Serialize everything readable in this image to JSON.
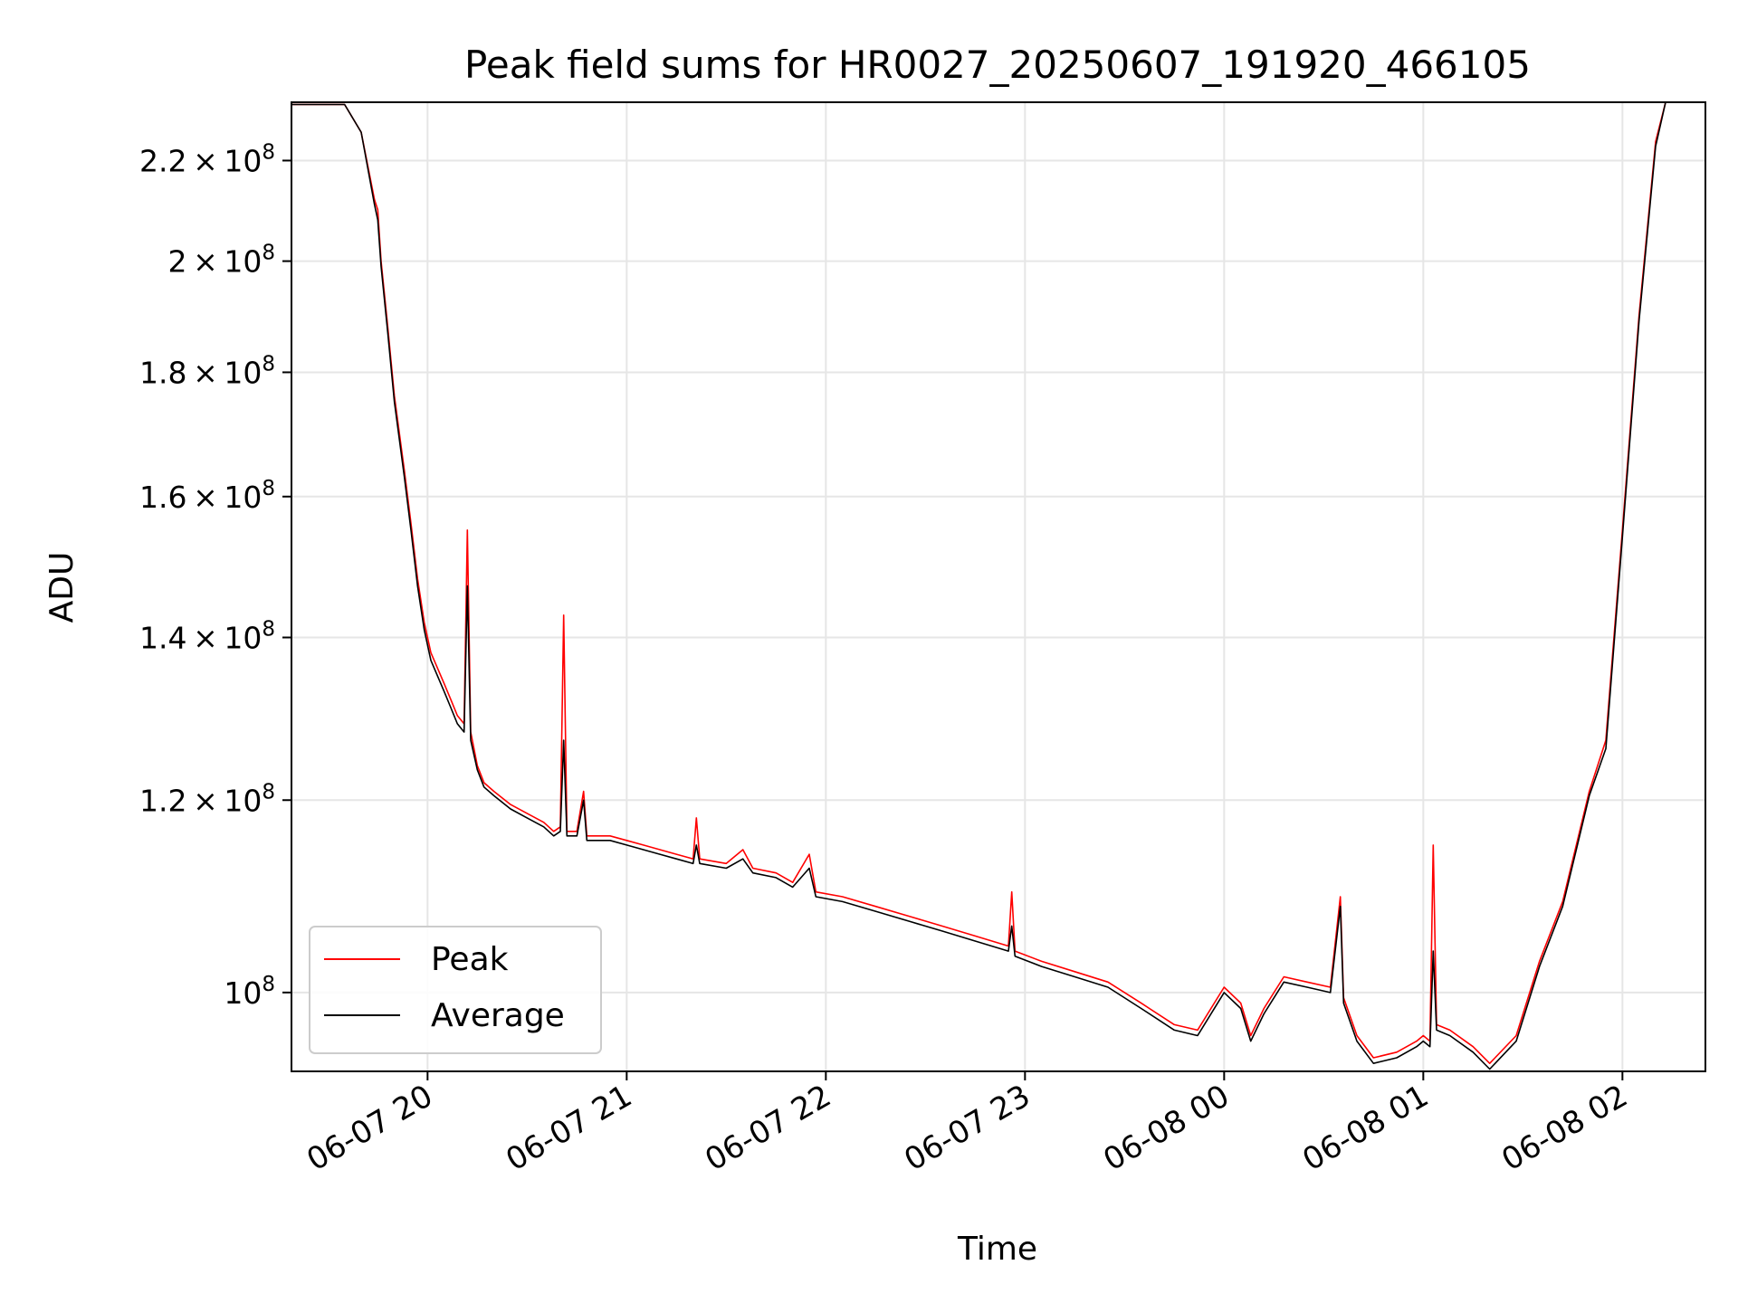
{
  "chart_data": {
    "type": "line",
    "title": "Peak field sums for HR0027_20250607_191920_466105",
    "xlabel": "Time",
    "ylabel": "ADU",
    "x_unit": "date-hour",
    "xlim": [
      "06-07 19:19",
      "06-08 02:25"
    ],
    "ylim": [
      92800000,
      232500000
    ],
    "yscale": "log",
    "grid": true,
    "legend_position": "lower-left",
    "x_ticks": [
      {
        "label": "06-07 20",
        "value": "06-07 20:00"
      },
      {
        "label": "06-07 21",
        "value": "06-07 21:00"
      },
      {
        "label": "06-07 22",
        "value": "06-07 22:00"
      },
      {
        "label": "06-07 23",
        "value": "06-07 23:00"
      },
      {
        "label": "06-08 00",
        "value": "06-08 00:00"
      },
      {
        "label": "06-08 01",
        "value": "06-08 01:00"
      },
      {
        "label": "06-08 02",
        "value": "06-08 02:00"
      }
    ],
    "y_ticks": [
      {
        "mantissa": "2.2",
        "value": 220000000
      },
      {
        "mantissa": "2",
        "value": 200000000
      },
      {
        "mantissa": "1.8",
        "value": 180000000
      },
      {
        "mantissa": "1.6",
        "value": 160000000
      },
      {
        "mantissa": "1.4",
        "value": 140000000
      },
      {
        "mantissa": "1.2",
        "value": 120000000
      },
      {
        "mantissa": "",
        "value": 100000000
      }
    ],
    "y_tick_base": "10",
    "y_tick_exponent": "8",
    "times_sign": "×",
    "series": [
      {
        "name": "Peak",
        "color": "#ff0000",
        "points": [
          [
            "06-07 19:19",
            232000000
          ],
          [
            "06-07 19:35",
            232000000
          ],
          [
            "06-07 19:40",
            226000000
          ],
          [
            "06-07 19:44",
            212000000
          ],
          [
            "06-07 19:45",
            210000000
          ],
          [
            "06-07 19:46",
            200000000
          ],
          [
            "06-07 19:48",
            188000000
          ],
          [
            "06-07 19:50",
            176000000
          ],
          [
            "06-07 19:53",
            164000000
          ],
          [
            "06-07 19:55",
            156000000
          ],
          [
            "06-07 19:57",
            148000000
          ],
          [
            "06-07 19:59",
            142000000
          ],
          [
            "06-07 20:01",
            138000000
          ],
          [
            "06-07 20:03",
            136000000
          ],
          [
            "06-07 20:05",
            134000000
          ],
          [
            "06-07 20:07",
            132000000
          ],
          [
            "06-07 20:09",
            130000000
          ],
          [
            "06-07 20:11",
            129000000
          ],
          [
            "06-07 20:12",
            155000000
          ],
          [
            "06-07 20:13",
            128000000
          ],
          [
            "06-07 20:15",
            124000000
          ],
          [
            "06-07 20:17",
            122000000
          ],
          [
            "06-07 20:20",
            121000000
          ],
          [
            "06-07 20:25",
            119500000
          ],
          [
            "06-07 20:30",
            118500000
          ],
          [
            "06-07 20:35",
            117500000
          ],
          [
            "06-07 20:38",
            116500000
          ],
          [
            "06-07 20:40",
            117000000
          ],
          [
            "06-07 20:41",
            143000000
          ],
          [
            "06-07 20:42",
            116500000
          ],
          [
            "06-07 20:45",
            116500000
          ],
          [
            "06-07 20:47",
            121000000
          ],
          [
            "06-07 20:48",
            116000000
          ],
          [
            "06-07 20:55",
            116000000
          ],
          [
            "06-07 21:00",
            115500000
          ],
          [
            "06-07 21:05",
            115000000
          ],
          [
            "06-07 21:10",
            114500000
          ],
          [
            "06-07 21:15",
            114000000
          ],
          [
            "06-07 21:20",
            113500000
          ],
          [
            "06-07 21:21",
            118000000
          ],
          [
            "06-07 21:22",
            113500000
          ],
          [
            "06-07 21:30",
            113000000
          ],
          [
            "06-07 21:35",
            114500000
          ],
          [
            "06-07 21:38",
            112500000
          ],
          [
            "06-07 21:45",
            112000000
          ],
          [
            "06-07 21:50",
            111000000
          ],
          [
            "06-07 21:55",
            114000000
          ],
          [
            "06-07 21:57",
            110000000
          ],
          [
            "06-07 22:05",
            109500000
          ],
          [
            "06-07 22:15",
            108500000
          ],
          [
            "06-07 22:25",
            107500000
          ],
          [
            "06-07 22:35",
            106500000
          ],
          [
            "06-07 22:45",
            105500000
          ],
          [
            "06-07 22:55",
            104500000
          ],
          [
            "06-07 22:56",
            110000000
          ],
          [
            "06-07 22:57",
            104000000
          ],
          [
            "06-07 23:05",
            103000000
          ],
          [
            "06-07 23:15",
            102000000
          ],
          [
            "06-07 23:25",
            101000000
          ],
          [
            "06-07 23:35",
            99000000
          ],
          [
            "06-07 23:45",
            97000000
          ],
          [
            "06-07 23:52",
            96500000
          ],
          [
            "06-08 00:00",
            100500000
          ],
          [
            "06-08 00:05",
            99000000
          ],
          [
            "06-08 00:08",
            96000000
          ],
          [
            "06-08 00:12",
            98500000
          ],
          [
            "06-08 00:18",
            101500000
          ],
          [
            "06-08 00:25",
            101000000
          ],
          [
            "06-08 00:32",
            100500000
          ],
          [
            "06-08 00:35",
            109500000
          ],
          [
            "06-08 00:36",
            99500000
          ],
          [
            "06-08 00:40",
            96000000
          ],
          [
            "06-08 00:45",
            94000000
          ],
          [
            "06-08 00:52",
            94500000
          ],
          [
            "06-08 00:58",
            95500000
          ],
          [
            "06-08 01:00",
            96000000
          ],
          [
            "06-08 01:02",
            95500000
          ],
          [
            "06-08 01:03",
            115000000
          ],
          [
            "06-08 01:04",
            97000000
          ],
          [
            "06-08 01:08",
            96500000
          ],
          [
            "06-08 01:15",
            95000000
          ],
          [
            "06-08 01:20",
            93500000
          ],
          [
            "06-08 01:28",
            96000000
          ],
          [
            "06-08 01:35",
            103000000
          ],
          [
            "06-08 01:42",
            109000000
          ],
          [
            "06-08 01:50",
            121000000
          ],
          [
            "06-08 01:55",
            127000000
          ],
          [
            "06-08 02:00",
            155000000
          ],
          [
            "06-08 02:05",
            190000000
          ],
          [
            "06-08 02:10",
            224000000
          ],
          [
            "06-08 02:13",
            232500000
          ]
        ]
      },
      {
        "name": "Average",
        "color": "#000000",
        "points": [
          [
            "06-07 19:19",
            232000000
          ],
          [
            "06-07 19:35",
            232000000
          ],
          [
            "06-07 19:40",
            226000000
          ],
          [
            "06-07 19:44",
            211000000
          ],
          [
            "06-07 19:45",
            208000000
          ],
          [
            "06-07 19:46",
            199000000
          ],
          [
            "06-07 19:48",
            187000000
          ],
          [
            "06-07 19:50",
            175000000
          ],
          [
            "06-07 19:53",
            163000000
          ],
          [
            "06-07 19:55",
            155000000
          ],
          [
            "06-07 19:57",
            147000000
          ],
          [
            "06-07 19:59",
            141000000
          ],
          [
            "06-07 20:01",
            137000000
          ],
          [
            "06-07 20:03",
            135000000
          ],
          [
            "06-07 20:05",
            133000000
          ],
          [
            "06-07 20:07",
            131000000
          ],
          [
            "06-07 20:09",
            129000000
          ],
          [
            "06-07 20:11",
            128000000
          ],
          [
            "06-07 20:12",
            147000000
          ],
          [
            "06-07 20:13",
            127000000
          ],
          [
            "06-07 20:15",
            123500000
          ],
          [
            "06-07 20:17",
            121500000
          ],
          [
            "06-07 20:20",
            120500000
          ],
          [
            "06-07 20:25",
            119000000
          ],
          [
            "06-07 20:30",
            118000000
          ],
          [
            "06-07 20:35",
            117000000
          ],
          [
            "06-07 20:38",
            116000000
          ],
          [
            "06-07 20:40",
            116500000
          ],
          [
            "06-07 20:41",
            127000000
          ],
          [
            "06-07 20:42",
            116000000
          ],
          [
            "06-07 20:45",
            116000000
          ],
          [
            "06-07 20:47",
            120000000
          ],
          [
            "06-07 20:48",
            115500000
          ],
          [
            "06-07 20:55",
            115500000
          ],
          [
            "06-07 21:00",
            115000000
          ],
          [
            "06-07 21:05",
            114500000
          ],
          [
            "06-07 21:10",
            114000000
          ],
          [
            "06-07 21:15",
            113500000
          ],
          [
            "06-07 21:20",
            113000000
          ],
          [
            "06-07 21:21",
            115000000
          ],
          [
            "06-07 21:22",
            113000000
          ],
          [
            "06-07 21:30",
            112500000
          ],
          [
            "06-07 21:35",
            113500000
          ],
          [
            "06-07 21:38",
            112000000
          ],
          [
            "06-07 21:45",
            111500000
          ],
          [
            "06-07 21:50",
            110500000
          ],
          [
            "06-07 21:55",
            112500000
          ],
          [
            "06-07 21:57",
            109500000
          ],
          [
            "06-07 22:05",
            109000000
          ],
          [
            "06-07 22:15",
            108000000
          ],
          [
            "06-07 22:25",
            107000000
          ],
          [
            "06-07 22:35",
            106000000
          ],
          [
            "06-07 22:45",
            105000000
          ],
          [
            "06-07 22:55",
            104000000
          ],
          [
            "06-07 22:56",
            106500000
          ],
          [
            "06-07 22:57",
            103500000
          ],
          [
            "06-07 23:05",
            102500000
          ],
          [
            "06-07 23:15",
            101500000
          ],
          [
            "06-07 23:25",
            100500000
          ],
          [
            "06-07 23:35",
            98500000
          ],
          [
            "06-07 23:45",
            96500000
          ],
          [
            "06-07 23:52",
            96000000
          ],
          [
            "06-08 00:00",
            100000000
          ],
          [
            "06-08 00:05",
            98500000
          ],
          [
            "06-08 00:08",
            95500000
          ],
          [
            "06-08 00:12",
            98000000
          ],
          [
            "06-08 00:18",
            101000000
          ],
          [
            "06-08 00:25",
            100500000
          ],
          [
            "06-08 00:32",
            100000000
          ],
          [
            "06-08 00:35",
            108500000
          ],
          [
            "06-08 00:36",
            99000000
          ],
          [
            "06-08 00:40",
            95500000
          ],
          [
            "06-08 00:45",
            93500000
          ],
          [
            "06-08 00:52",
            94000000
          ],
          [
            "06-08 00:58",
            95000000
          ],
          [
            "06-08 01:00",
            95500000
          ],
          [
            "06-08 01:02",
            95000000
          ],
          [
            "06-08 01:03",
            104000000
          ],
          [
            "06-08 01:04",
            96500000
          ],
          [
            "06-08 01:08",
            96000000
          ],
          [
            "06-08 01:15",
            94500000
          ],
          [
            "06-08 01:20",
            93000000
          ],
          [
            "06-08 01:28",
            95500000
          ],
          [
            "06-08 01:35",
            102500000
          ],
          [
            "06-08 01:42",
            108500000
          ],
          [
            "06-08 01:50",
            120500000
          ],
          [
            "06-08 01:55",
            126000000
          ],
          [
            "06-08 02:00",
            154000000
          ],
          [
            "06-08 02:05",
            189000000
          ],
          [
            "06-08 02:10",
            223000000
          ],
          [
            "06-08 02:13",
            232500000
          ]
        ]
      }
    ]
  }
}
